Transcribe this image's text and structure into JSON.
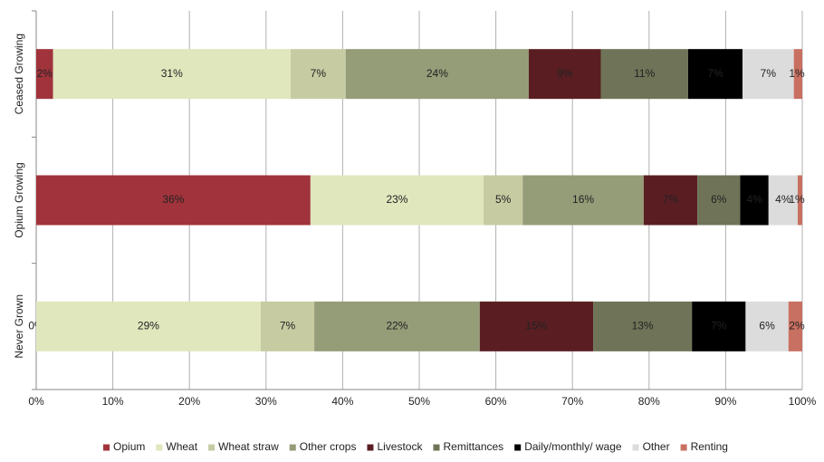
{
  "chart_data": {
    "type": "stacked-bar-horizontal",
    "categories": [
      "Ceased Growing",
      "Opium Growing",
      "Never Grown"
    ],
    "xlim": [
      0,
      100
    ],
    "xticks": [
      {
        "value": 0,
        "label": "0%"
      },
      {
        "value": 10,
        "label": "10%"
      },
      {
        "value": 20,
        "label": "20%"
      },
      {
        "value": 30,
        "label": "30%"
      },
      {
        "value": 40,
        "label": "40%"
      },
      {
        "value": 50,
        "label": "50%"
      },
      {
        "value": 60,
        "label": "60%"
      },
      {
        "value": 70,
        "label": "70%"
      },
      {
        "value": 80,
        "label": "80%"
      },
      {
        "value": 90,
        "label": "90%"
      },
      {
        "value": 100,
        "label": "100%"
      }
    ],
    "grid": true,
    "legend": "bottom",
    "series": [
      {
        "name": "Opium",
        "color": "#a0333b",
        "label_color": "#ffffff",
        "values": [
          2.2,
          35.8,
          0
        ],
        "value_labels": [
          "2%",
          "36%",
          "0%"
        ]
      },
      {
        "name": "Wheat",
        "color": "#e1e7bd",
        "label_color": "#8b1a1a",
        "values": [
          31.0,
          22.6,
          29.3
        ],
        "value_labels": [
          "31%",
          "23%",
          "29%"
        ]
      },
      {
        "name": "Wheat straw",
        "color": "#c6cba2",
        "label_color": "#8b1a1a",
        "values": [
          7.2,
          5.1,
          7.0
        ],
        "value_labels": [
          "7%",
          "5%",
          "7%"
        ]
      },
      {
        "name": "Other crops",
        "color": "#959c78",
        "label_color": "#ffffff",
        "values": [
          23.9,
          15.8,
          21.6
        ],
        "value_labels": [
          "24%",
          "16%",
          "22%"
        ]
      },
      {
        "name": "Livestock",
        "color": "#5a1e22",
        "label_color": "#ffffff",
        "values": [
          9.4,
          7.0,
          14.8
        ],
        "value_labels": [
          "9%",
          "7%",
          "15%"
        ]
      },
      {
        "name": "Remittances",
        "color": "#6f7458",
        "label_color": "#ffffff",
        "values": [
          11.4,
          5.6,
          12.9
        ],
        "value_labels": [
          "11%",
          "6%",
          "13%"
        ]
      },
      {
        "name": "Daily/monthly/ wage",
        "color": "#000000",
        "label_color": "#ffffff",
        "values": [
          7.1,
          3.7,
          7.0
        ],
        "value_labels": [
          "7%",
          "4%",
          "7%"
        ]
      },
      {
        "name": "Other",
        "color": "#dcdcdc",
        "label_color": "#8b1a1a",
        "values": [
          6.7,
          3.8,
          5.6
        ],
        "value_labels": [
          "7%",
          "4%",
          "6%"
        ]
      },
      {
        "name": "Renting",
        "color": "#c87062",
        "label_color": "#000000",
        "values": [
          1.1,
          0.6,
          1.8
        ],
        "value_labels": [
          "1%",
          "1%",
          "2%"
        ]
      }
    ]
  }
}
